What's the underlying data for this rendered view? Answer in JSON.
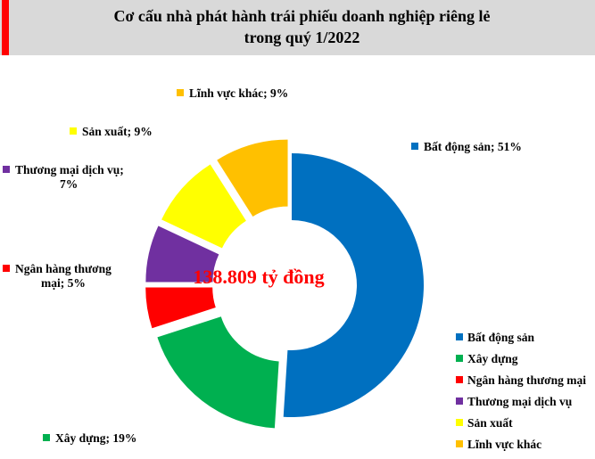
{
  "header": {
    "title_line1": "Cơ cấu nhà phát hành trái phiếu doanh nghiệp riêng lẻ",
    "title_line2": "trong quý 1/2022",
    "accent_color": "#ff0000",
    "background_color": "#d9d9d9"
  },
  "center_label": "138.809 tỷ đồng",
  "data_labels": [
    {
      "text": "Bất động sản; 51%",
      "color": "#0070c0"
    },
    {
      "text": "Xây dựng; 19%",
      "color": "#00b050"
    },
    {
      "line1": "Ngân hàng thương",
      "line2": "mại; 5%",
      "color": "#ff0000"
    },
    {
      "line1": "Thương mại dịch vụ;",
      "line2": "7%",
      "color": "#7030a0"
    },
    {
      "text": "Sản xuất; 9%",
      "color": "#ffff00"
    },
    {
      "text": "Lĩnh vực khác; 9%",
      "color": "#ffc000"
    }
  ],
  "legend": [
    {
      "label": "Bất động sản",
      "color": "#0070c0"
    },
    {
      "label": "Xây dựng",
      "color": "#00b050"
    },
    {
      "label": "Ngân hàng thương mại",
      "color": "#ff0000"
    },
    {
      "label": "Thương mại dịch vụ",
      "color": "#7030a0"
    },
    {
      "label": "Sản xuất",
      "color": "#ffff00"
    },
    {
      "label": "Lĩnh vực khác",
      "color": "#ffc000"
    }
  ],
  "chart_data": {
    "type": "pie",
    "variant": "donut-exploded",
    "title": "Cơ cấu nhà phát hành trái phiếu doanh nghiệp riêng lẻ trong quý 1/2022",
    "center_text": "138.809 tỷ đồng",
    "categories": [
      "Bất động sản",
      "Xây dựng",
      "Ngân hàng thương mại",
      "Thương mại dịch vụ",
      "Sản xuất",
      "Lĩnh vực khác"
    ],
    "values": [
      51,
      19,
      5,
      7,
      9,
      9
    ],
    "unit": "%",
    "colors": [
      "#0070c0",
      "#00b050",
      "#ff0000",
      "#7030a0",
      "#ffff00",
      "#ffc000"
    ],
    "explode": [
      0,
      1,
      1,
      1,
      1,
      1
    ],
    "start_angle_deg": 0,
    "direction": "clockwise",
    "legend_position": "bottom-right",
    "data_label_format": "category; percent"
  }
}
